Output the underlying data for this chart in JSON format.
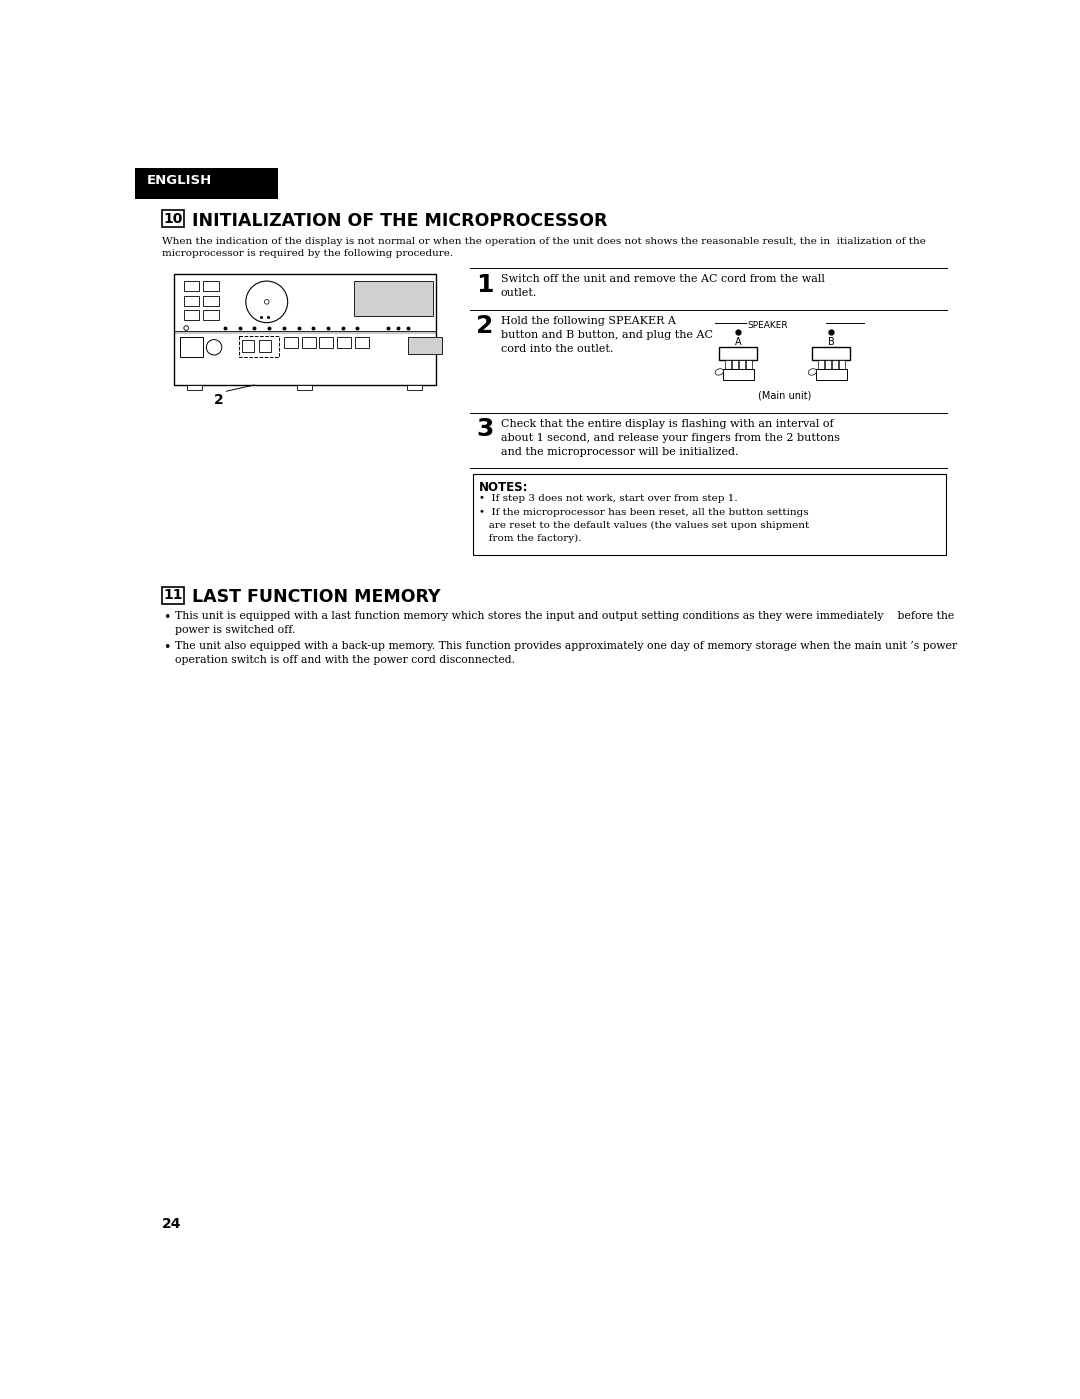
{
  "bg_color": "#ffffff",
  "page_width": 10.8,
  "page_height": 13.99,
  "english_label": "ENGLISH",
  "section10_num": "10",
  "section10_title": "INITIALIZATION OF THE MICROPROCESSOR",
  "section10_intro": "When the indication of the display is not normal or when the operation of the unit does not shows the reasonable result, the in  itialization of the\nmicroprocessor is required by the following procedure.",
  "step1_num": "1",
  "step1_text": "Switch off the unit and remove the AC cord from the wall\noutlet.",
  "step2_num": "2",
  "step2_text": "Hold the following SPEAKER A\nbutton and B button, and plug the AC\ncord into the outlet.",
  "step3_num": "3",
  "step3_text": "Check that the entire display is flashing with an interval of\nabout 1 second, and release your fingers from the 2 buttons\nand the microprocessor will be initialized.",
  "notes_title": "NOTES:",
  "note1": "If step 3 does not work, start over from step 1.",
  "note2": "If the microprocessor has been reset, all the button settings\n   are reset to the default values (the values set upon shipment\n   from the factory).",
  "section11_num": "11",
  "section11_title": "LAST FUNCTION MEMORY",
  "bullet1": "This unit is equipped with a last function memory which stores the input and output setting conditions as they were immediately    before the\npower is switched off.",
  "bullet2": "The unit also equipped with a back-up memory. This function provides approximately one day of memory storage when the main unit ’s power\noperation switch is off and with the power cord disconnected.",
  "page_num": "24",
  "main_unit_label": "(Main unit)",
  "speaker_label": "SPEAKER",
  "label_a": "A",
  "label_b": "B",
  "finger_offsets": [
    -13,
    -4,
    5,
    14
  ]
}
